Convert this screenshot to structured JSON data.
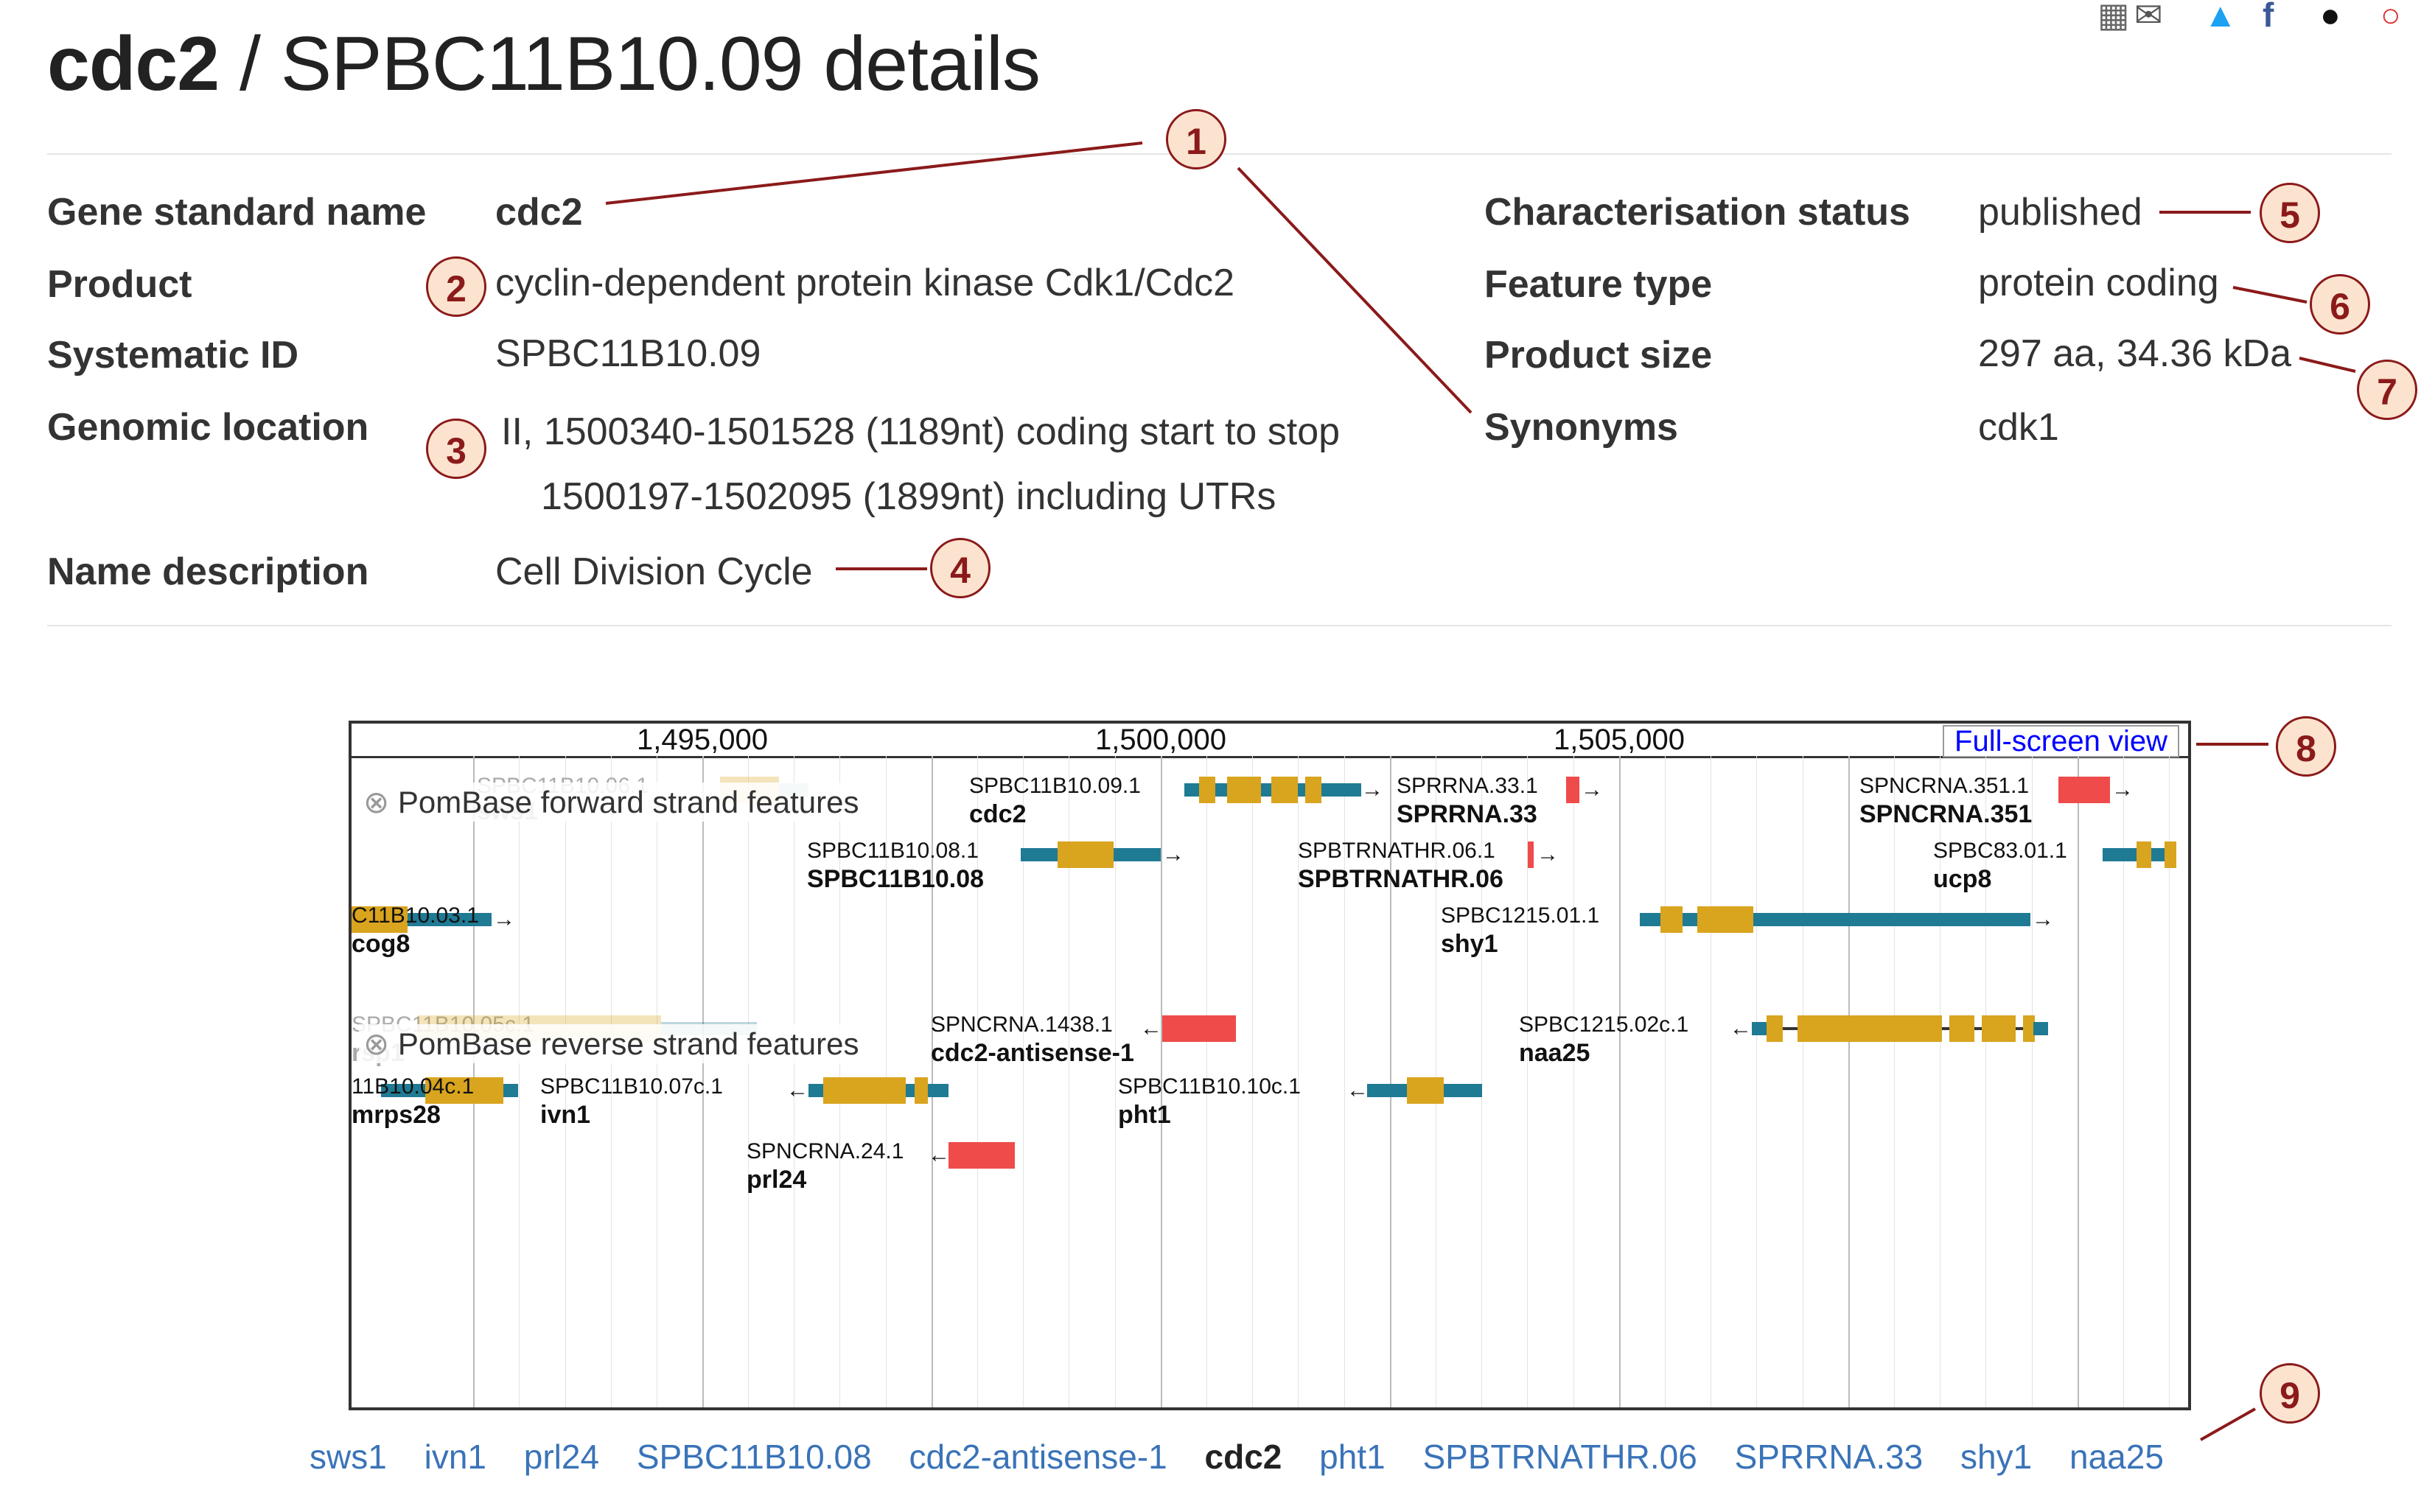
{
  "header": {
    "gene": "cdc2",
    "rest": " / SPBC11B10.09 details"
  },
  "left_fields": [
    {
      "label": "Gene standard name",
      "value": "cdc2"
    },
    {
      "label": "Product",
      "value": "cyclin-dependent protein kinase Cdk1/Cdc2"
    },
    {
      "label": "Systematic ID",
      "value": "SPBC11B10.09"
    },
    {
      "label": "Genomic location",
      "value": "II, 1500340-1501528 (1189nt) coding start to stop",
      "value2": "1500197-1502095 (1899nt) including UTRs"
    },
    {
      "label": "Name description",
      "value": "Cell Division Cycle"
    }
  ],
  "right_fields": [
    {
      "label": "Characterisation status",
      "value": "published"
    },
    {
      "label": "Feature type",
      "value": "protein coding"
    },
    {
      "label": "Product size",
      "value": "297 aa, 34.36 kDa"
    },
    {
      "label": "Synonyms",
      "value": "cdk1"
    }
  ],
  "callouts": [
    "1",
    "2",
    "3",
    "4",
    "5",
    "6",
    "7",
    "8",
    "9"
  ],
  "browser": {
    "ticks": [
      "1,495,000",
      "1,500,000",
      "1,505,000"
    ],
    "fullscreen": "Full-screen view",
    "forward_track": "PomBase forward strand features",
    "reverse_track": "PomBase reverse strand features",
    "features": [
      {
        "id": "SPBC11B10.06.1",
        "name": "sws1",
        "ghost": true
      },
      {
        "id": "SPBC11B10.09.1",
        "name": "cdc2"
      },
      {
        "id": "SPRRNA.33.1",
        "name": "SPRRNA.33"
      },
      {
        "id": "SPNCRNA.351.1",
        "name": "SPNCRNA.351"
      },
      {
        "id": "SPBC11B10.08.1",
        "name": "SPBC11B10.08"
      },
      {
        "id": "SPBTRNATHR.06.1",
        "name": "SPBTRNATHR.06"
      },
      {
        "id": "SPBC83.01.1",
        "name": "ucp8"
      },
      {
        "id": "C11B10.03.1",
        "name": "cog8"
      },
      {
        "id": "SPBC1215.01.1",
        "name": "shy1"
      },
      {
        "id": "SPBC11B10.05c.1",
        "name": "rsp1",
        "ghost": true
      },
      {
        "id": "SPNCRNA.1438.1",
        "name": "cdc2-antisense-1"
      },
      {
        "id": "SPBC1215.02c.1",
        "name": "naa25"
      },
      {
        "id": "11B10.04c.1",
        "name": "mrps28"
      },
      {
        "id": "SPBC11B10.07c.1",
        "name": "ivn1"
      },
      {
        "id": "SPBC11B10.10c.1",
        "name": "pht1"
      },
      {
        "id": "SPNCRNA.24.1",
        "name": "prl24"
      }
    ]
  },
  "gene_list": [
    "sws1",
    "ivn1",
    "prl24",
    "SPBC11B10.08",
    "cdc2-antisense-1",
    "cdc2",
    "pht1",
    "SPBTRNATHR.06",
    "SPRRNA.33",
    "shy1",
    "naa25"
  ],
  "gene_list_current": "cdc2",
  "colors": {
    "utr": "#1f7a94",
    "cds": "#d9a41e",
    "ncrna": "#ef4b4b",
    "callout_border": "#8b1a1a",
    "callout_fill": "#fbe3cf",
    "link": "#3a73b8"
  }
}
